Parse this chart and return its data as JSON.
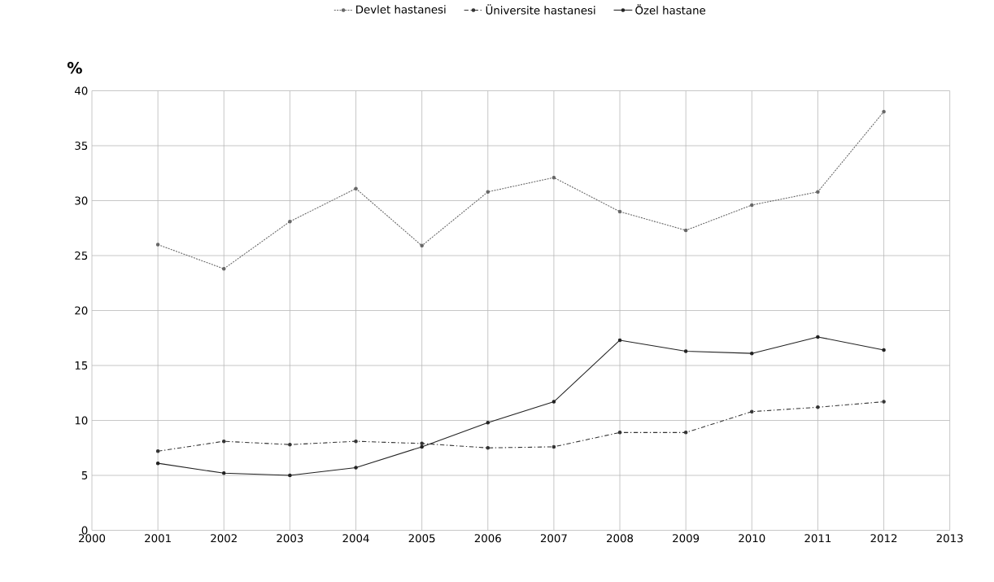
{
  "chart_data": {
    "type": "line",
    "ylabel": "%",
    "x": [
      2001,
      2002,
      2003,
      2004,
      2005,
      2006,
      2007,
      2008,
      2009,
      2010,
      2011,
      2012
    ],
    "series": [
      {
        "name": "Devlet hastanesi",
        "color": "#666666",
        "line_style": "dotted",
        "values": [
          26.0,
          23.8,
          28.1,
          31.1,
          25.9,
          30.8,
          32.1,
          29.0,
          27.3,
          29.6,
          30.8,
          38.1
        ]
      },
      {
        "name": "Üniversite hastanesi",
        "color": "#333333",
        "line_style": "dashed",
        "values": [
          7.2,
          8.1,
          7.8,
          8.1,
          7.9,
          7.5,
          7.6,
          8.9,
          8.9,
          10.8,
          11.2,
          11.7
        ]
      },
      {
        "name": "Özel hastane",
        "color": "#222222",
        "line_style": "solid",
        "values": [
          6.1,
          5.2,
          5.0,
          5.7,
          7.6,
          9.8,
          11.7,
          17.3,
          16.3,
          16.1,
          17.6,
          16.4
        ]
      }
    ],
    "xlim": [
      2000,
      2013
    ],
    "xticks": [
      2000,
      2001,
      2002,
      2003,
      2004,
      2005,
      2006,
      2007,
      2008,
      2009,
      2010,
      2011,
      2012,
      2013
    ],
    "ylim": [
      0,
      40
    ],
    "yticks": [
      0,
      5,
      10,
      15,
      20,
      25,
      30,
      35,
      40
    ],
    "grid": true,
    "legend": "top",
    "marker": "circle"
  }
}
